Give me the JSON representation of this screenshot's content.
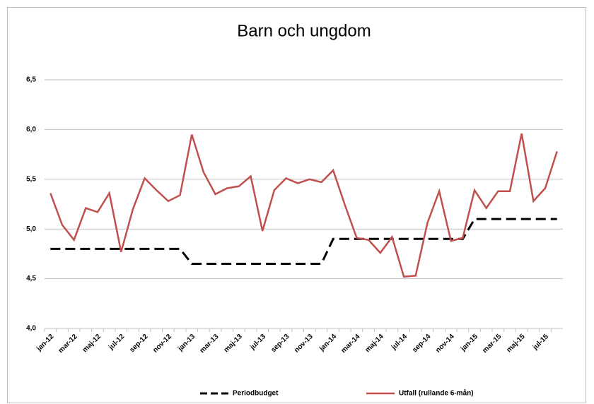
{
  "chart_data": {
    "type": "line",
    "title": "Barn och ungdom",
    "categories": [
      "jan-12",
      null,
      "mar-12",
      null,
      "maj-12",
      null,
      "jul-12",
      null,
      "sep-12",
      null,
      "nov-12",
      null,
      "jan-13",
      null,
      "mar-13",
      null,
      "maj-13",
      null,
      "jul-13",
      null,
      "sep-13",
      null,
      "nov-13",
      null,
      "jan-14",
      null,
      "mar-14",
      null,
      "maj-14",
      null,
      "jul-14",
      null,
      "sep-14",
      null,
      "nov-14",
      null,
      "jan-15",
      null,
      "mar-15",
      null,
      "maj-15",
      null,
      "jul-15",
      null
    ],
    "series": [
      {
        "name": "Periodbudget",
        "color": "#000000",
        "dash": true,
        "values": [
          4.8,
          4.8,
          4.8,
          4.8,
          4.8,
          4.8,
          4.8,
          4.8,
          4.8,
          4.8,
          4.8,
          4.8,
          4.65,
          4.65,
          4.65,
          4.65,
          4.65,
          4.65,
          4.65,
          4.65,
          4.65,
          4.65,
          4.65,
          4.65,
          4.9,
          4.9,
          4.9,
          4.9,
          4.9,
          4.9,
          4.9,
          4.9,
          4.9,
          4.9,
          4.9,
          4.9,
          5.1,
          5.1,
          5.1,
          5.1,
          5.1,
          5.1,
          5.1,
          5.1
        ]
      },
      {
        "name": "Utfall (rullande 6-mån)",
        "color": "#c0504d",
        "dash": false,
        "values": [
          5.36,
          5.04,
          4.89,
          5.21,
          5.17,
          5.36,
          4.77,
          5.2,
          5.51,
          5.39,
          5.28,
          5.34,
          5.95,
          5.57,
          5.35,
          5.41,
          5.43,
          5.53,
          4.98,
          5.39,
          5.51,
          5.46,
          5.5,
          5.47,
          5.59,
          5.24,
          4.91,
          4.89,
          4.76,
          4.92,
          4.52,
          4.53,
          5.06,
          5.38,
          4.88,
          4.91,
          5.39,
          5.21,
          5.38,
          5.38,
          5.96,
          5.28,
          5.41,
          5.78
        ]
      }
    ],
    "ylim": [
      4,
      6.5
    ],
    "yticks": [
      {
        "value": 4,
        "label": "4,0"
      },
      {
        "value": 4.5,
        "label": "4,5"
      },
      {
        "value": 5,
        "label": "5,0"
      },
      {
        "value": 5.5,
        "label": "5,5"
      },
      {
        "value": 6,
        "label": "6,0"
      },
      {
        "value": 6.5,
        "label": "6,5"
      }
    ],
    "grid": true,
    "legend": "bottom"
  }
}
